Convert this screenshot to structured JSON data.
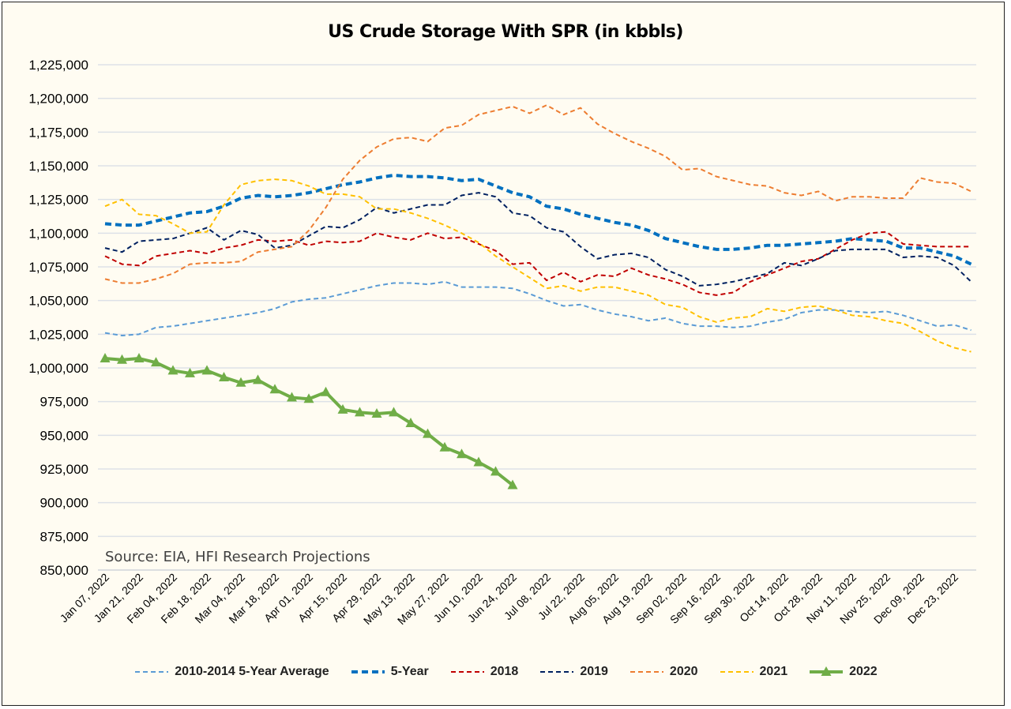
{
  "chart_data": {
    "type": "line",
    "title": "US Crude Storage With SPR (in kbbls)",
    "annotation": "Source: EIA, HFI Research Projections",
    "xlabel": "",
    "ylabel": "",
    "ylim": [
      850000,
      1225000
    ],
    "yticks": [
      "850,000",
      "875,000",
      "900,000",
      "925,000",
      "950,000",
      "975,000",
      "1,000,000",
      "1,025,000",
      "1,050,000",
      "1,075,000",
      "1,100,000",
      "1,125,000",
      "1,150,000",
      "1,175,000",
      "1,200,000",
      "1,225,000"
    ],
    "xtick_labels": [
      "Jan 07, 2022",
      "Jan 21, 2022",
      "Feb 04, 2022",
      "Feb 18, 2022",
      "Mar 04, 2022",
      "Mar 18, 2022",
      "Apr 01, 2022",
      "Apr 15, 2022",
      "Apr 29, 2022",
      "May 13, 2022",
      "May 27, 2022",
      "Jun 10, 2022",
      "Jun 24, 2022",
      "Jul 08, 2022",
      "Jul 22, 2022",
      "Aug 05, 2022",
      "Aug 19, 2022",
      "Sep 02, 2022",
      "Sep 16, 2022",
      "Sep 30, 2022",
      "Oct 14, 2022",
      "Oct 28, 2022",
      "Nov 11, 2022",
      "Nov 25, 2022",
      "Dec 09, 2022",
      "Dec 23, 2022"
    ],
    "grid": true,
    "legend": "bottom",
    "series": [
      {
        "name": "2010-2014 5-Year Average",
        "color": "#5b9bd5",
        "style": "dashed",
        "values": [
          1026000,
          1024000,
          1025000,
          1030000,
          1031000,
          1033000,
          1035000,
          1037000,
          1039000,
          1041000,
          1044000,
          1049000,
          1051000,
          1052000,
          1055000,
          1058000,
          1061000,
          1063000,
          1063000,
          1062000,
          1064000,
          1060000,
          1060000,
          1060000,
          1059000,
          1055000,
          1050000,
          1046000,
          1047000,
          1043000,
          1040000,
          1038000,
          1035000,
          1037000,
          1033000,
          1031000,
          1031000,
          1030000,
          1031000,
          1034000,
          1036000,
          1041000,
          1043000,
          1043000,
          1042000,
          1041000,
          1042000,
          1039000,
          1035000,
          1031000,
          1032000,
          1028000
        ]
      },
      {
        "name": "5-Year",
        "color": "#0070c0",
        "style": "dashed-thick",
        "values": [
          1107000,
          1106000,
          1106000,
          1109000,
          1112000,
          1115000,
          1116000,
          1120000,
          1126000,
          1128000,
          1127000,
          1128000,
          1130000,
          1133000,
          1136000,
          1138000,
          1141000,
          1143000,
          1142000,
          1142000,
          1141000,
          1139000,
          1140000,
          1135000,
          1130000,
          1127000,
          1120000,
          1118000,
          1114000,
          1111000,
          1108000,
          1106000,
          1102000,
          1096000,
          1093000,
          1090000,
          1088000,
          1088000,
          1089000,
          1091000,
          1091000,
          1092000,
          1093000,
          1094000,
          1096000,
          1095000,
          1094000,
          1089000,
          1089000,
          1086000,
          1083000,
          1077000
        ]
      },
      {
        "name": "2018",
        "color": "#c00000",
        "style": "dashed",
        "values": [
          1083000,
          1077000,
          1076000,
          1083000,
          1085000,
          1087000,
          1085000,
          1089000,
          1091000,
          1095000,
          1094000,
          1095000,
          1091000,
          1094000,
          1093000,
          1094000,
          1100000,
          1097000,
          1095000,
          1100000,
          1096000,
          1097000,
          1092000,
          1087000,
          1077000,
          1078000,
          1065000,
          1071000,
          1064000,
          1069000,
          1068000,
          1074000,
          1069000,
          1066000,
          1062000,
          1056000,
          1054000,
          1056000,
          1064000,
          1069000,
          1074000,
          1079000,
          1081000,
          1088000,
          1095000,
          1100000,
          1101000,
          1092000,
          1091000,
          1090000,
          1090000,
          1090000
        ]
      },
      {
        "name": "2019",
        "color": "#002060",
        "style": "dashed",
        "values": [
          1089000,
          1086000,
          1094000,
          1095000,
          1096000,
          1100000,
          1104000,
          1095000,
          1102000,
          1099000,
          1089000,
          1091000,
          1098000,
          1105000,
          1104000,
          1110000,
          1119000,
          1115000,
          1118000,
          1121000,
          1121000,
          1128000,
          1130000,
          1127000,
          1115000,
          1113000,
          1104000,
          1101000,
          1090000,
          1081000,
          1084000,
          1085000,
          1082000,
          1073000,
          1068000,
          1061000,
          1062000,
          1064000,
          1067000,
          1070000,
          1078000,
          1076000,
          1081000,
          1087000,
          1088000,
          1088000,
          1088000,
          1082000,
          1083000,
          1082000,
          1076000,
          1064000
        ]
      },
      {
        "name": "2020",
        "color": "#ed7d31",
        "style": "dashed",
        "values": [
          1066000,
          1063000,
          1063000,
          1066000,
          1070000,
          1077000,
          1078000,
          1078000,
          1079000,
          1086000,
          1088000,
          1090000,
          1102000,
          1119000,
          1140000,
          1154000,
          1164000,
          1170000,
          1171000,
          1168000,
          1178000,
          1180000,
          1188000,
          1191000,
          1194000,
          1189000,
          1195000,
          1188000,
          1193000,
          1181000,
          1174000,
          1168000,
          1163000,
          1157000,
          1147000,
          1148000,
          1142000,
          1139000,
          1136000,
          1135000,
          1130000,
          1128000,
          1131000,
          1124000,
          1127000,
          1127000,
          1126000,
          1126000,
          1141000,
          1138000,
          1137000,
          1131000
        ]
      },
      {
        "name": "2021",
        "color": "#ffc000",
        "style": "dashed",
        "values": [
          1120000,
          1125000,
          1114000,
          1113000,
          1107000,
          1100000,
          1101000,
          1121000,
          1136000,
          1139000,
          1140000,
          1139000,
          1135000,
          1129000,
          1129000,
          1127000,
          1118000,
          1118000,
          1115000,
          1111000,
          1106000,
          1100000,
          1093000,
          1083000,
          1075000,
          1067000,
          1059000,
          1061000,
          1057000,
          1060000,
          1060000,
          1057000,
          1054000,
          1047000,
          1045000,
          1038000,
          1034000,
          1037000,
          1038000,
          1044000,
          1042000,
          1045000,
          1046000,
          1043000,
          1039000,
          1038000,
          1035000,
          1033000,
          1027000,
          1020000,
          1015000,
          1012000
        ]
      },
      {
        "name": "2022",
        "color": "#70ad47",
        "style": "solid-markers",
        "values": [
          1007000,
          1006000,
          1007000,
          1004000,
          998000,
          996000,
          998000,
          993000,
          989000,
          991000,
          984000,
          978000,
          977000,
          982000,
          969000,
          967000,
          966000,
          967000,
          959000,
          951000,
          941000,
          936000,
          930000,
          923000,
          913000
        ]
      }
    ]
  }
}
